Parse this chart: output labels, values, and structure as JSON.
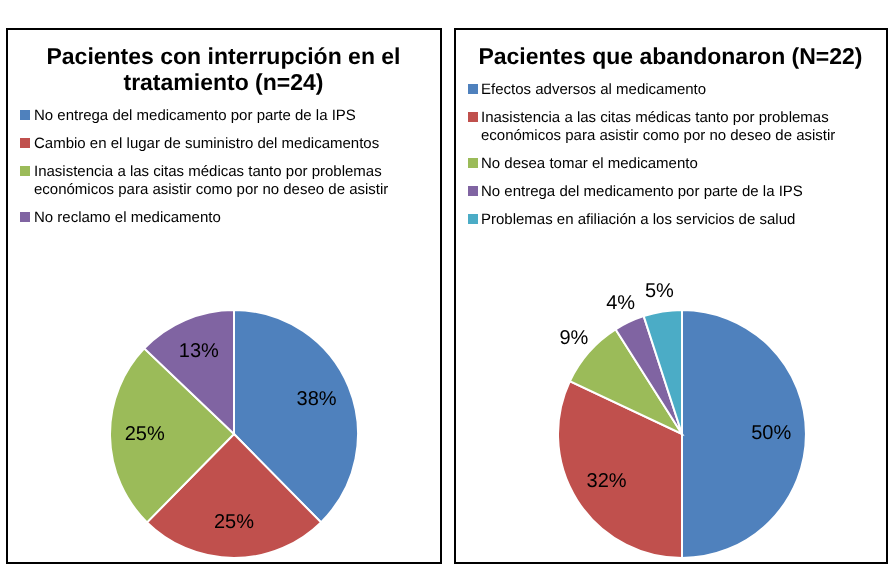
{
  "chart_data": [
    {
      "type": "pie",
      "title": "Pacientes con interrupción en el tratamiento (n=24)",
      "categories": [
        "No entrega del medicamento por parte de la IPS",
        "Cambio en el lugar de suministro del medicamentos",
        "Inasistencia a las citas médicas tanto por problemas económicos para asistir como por no deseo de asistir",
        "No reclamo el medicamento"
      ],
      "values": [
        38,
        25,
        25,
        13
      ],
      "colors": [
        "#4f81bd",
        "#c0504d",
        "#9bbb59",
        "#8064a2"
      ],
      "value_labels": [
        "38%",
        "25%",
        "25%",
        "13%"
      ],
      "legend": "top"
    },
    {
      "type": "pie",
      "title": "Pacientes que abandonaron (N=22)",
      "categories": [
        "Efectos adversos al medicamento",
        "Inasistencia a las citas médicas tanto por problemas económicos para asistir como por no deseo de asistir",
        "No desea tomar el medicamento",
        "No entrega del medicamento por parte de la IPS",
        "Problemas en afiliación a los servicios de salud"
      ],
      "values": [
        50,
        32,
        9,
        4,
        5
      ],
      "colors": [
        "#4f81bd",
        "#c0504d",
        "#9bbb59",
        "#8064a2",
        "#4bacc6"
      ],
      "value_labels": [
        "50%",
        "32%",
        "9%",
        "4%",
        "5%"
      ],
      "legend": "top"
    }
  ]
}
